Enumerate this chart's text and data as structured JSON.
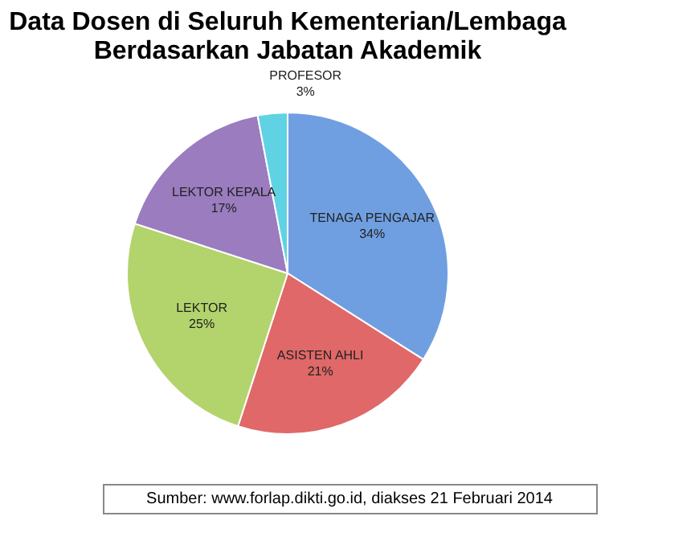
{
  "chart_data": {
    "type": "pie",
    "title": "Data Dosen di Seluruh Kementerian/Lembaga Berdasarkan Jabatan Akademik",
    "categories": [
      "TENAGA PENGAJAR",
      "ASISTEN AHLI",
      "LEKTOR",
      "LEKTOR KEPALA",
      "PROFESOR"
    ],
    "values": [
      34,
      21,
      25,
      17,
      3
    ],
    "value_labels": [
      "34%",
      "21%",
      "25%",
      "17%",
      "3%"
    ],
    "colors": [
      "#6f9fe0",
      "#e06868",
      "#b3d36c",
      "#9a7cbf",
      "#5fd3e3"
    ],
    "annotations": [
      "Sumber: www.forlap.dikti.go.id, diakses 21 Februari 2014"
    ]
  }
}
